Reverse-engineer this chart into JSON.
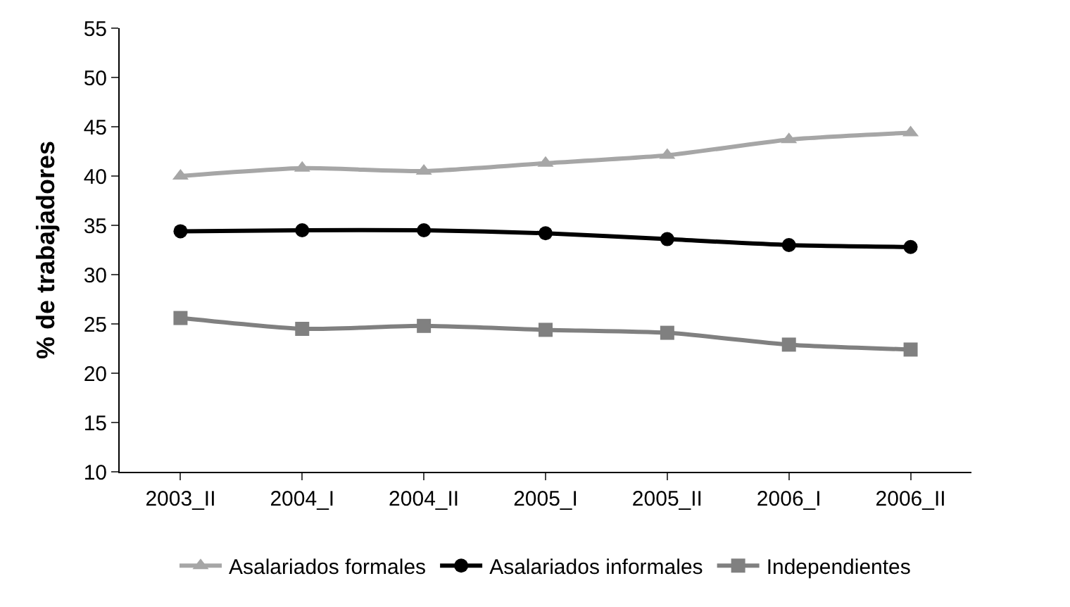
{
  "chart_data": {
    "type": "line",
    "ylabel": "% de trabajadores",
    "categories": [
      "2003_II",
      "2004_I",
      "2004_II",
      "2005_I",
      "2005_II",
      "2006_I",
      "2006_II"
    ],
    "series": [
      {
        "name": "Asalariados formales",
        "color": "#a6a6a6",
        "marker": "triangle",
        "values": [
          40.0,
          40.8,
          40.5,
          41.3,
          42.1,
          43.7,
          44.4
        ]
      },
      {
        "name": "Asalariados informales",
        "color": "#000000",
        "marker": "circle",
        "values": [
          34.4,
          34.5,
          34.5,
          34.2,
          33.6,
          33.0,
          32.8
        ]
      },
      {
        "name": "Independientes",
        "color": "#808080",
        "marker": "square",
        "values": [
          25.6,
          24.5,
          24.8,
          24.4,
          24.1,
          22.9,
          22.4
        ]
      }
    ],
    "ylim": [
      10,
      55
    ],
    "yticks": [
      10,
      15,
      20,
      25,
      30,
      35,
      40,
      45,
      50,
      55
    ],
    "legend": "bottom",
    "line_style": "solid"
  }
}
